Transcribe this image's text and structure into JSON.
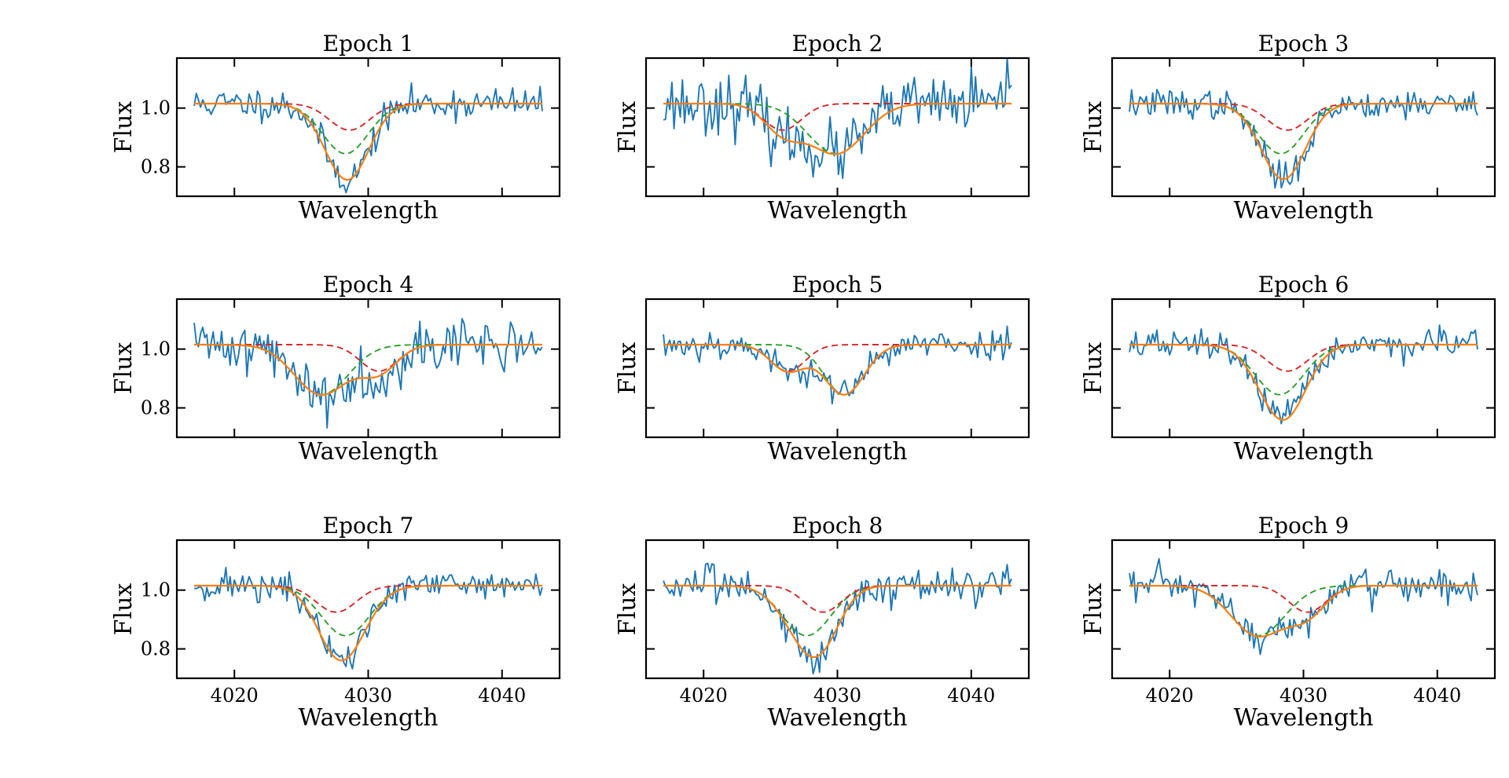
{
  "figure": {
    "colors": {
      "observed": "#1f77b4",
      "model": "#ff7f0e",
      "component_1": "#2ca02c",
      "component_2": "#d62728"
    }
  },
  "chart_data": [
    {
      "type": "line",
      "title": "Epoch 1",
      "xlabel": "Wavelength",
      "ylabel": "Flux",
      "xlim": [
        4015.7,
        4044.3
      ],
      "ylim": [
        0.7,
        1.17
      ],
      "xticks": [
        4020,
        4030,
        4040
      ],
      "yticks": [
        0.8,
        1.0
      ],
      "show_xticklabels": false,
      "show_yticklabels": true,
      "continuum": 1.015,
      "noise": 0.027,
      "seed": 11,
      "components": [
        {
          "name": "",
          "center": 4028.3,
          "depth": 0.17,
          "sigma": 1.7,
          "color": "#2ca02c"
        },
        {
          "name": "",
          "center": 4028.6,
          "depth": 0.09,
          "sigma": 1.5,
          "color": "#d62728"
        }
      ]
    },
    {
      "type": "line",
      "title": "Epoch 2",
      "xlabel": "Wavelength",
      "ylabel": "Flux",
      "xlim": [
        4015.7,
        4044.3
      ],
      "ylim": [
        0.7,
        1.17
      ],
      "xticks": [
        4020,
        4030,
        4040
      ],
      "yticks": [
        0.8,
        1.0
      ],
      "show_xticklabels": false,
      "show_yticklabels": false,
      "continuum": 1.015,
      "noise": 0.05,
      "seed": 23,
      "components": [
        {
          "name": "",
          "center": 4029.9,
          "depth": 0.17,
          "sigma": 2.1,
          "color": "#2ca02c"
        },
        {
          "name": "",
          "center": 4025.9,
          "depth": 0.09,
          "sigma": 1.4,
          "color": "#d62728"
        }
      ]
    },
    {
      "type": "line",
      "title": "Epoch 3",
      "xlabel": "Wavelength",
      "ylabel": "Flux",
      "xlim": [
        4015.7,
        4044.3
      ],
      "ylim": [
        0.7,
        1.17
      ],
      "xticks": [
        4020,
        4030,
        4040
      ],
      "yticks": [
        0.8,
        1.0
      ],
      "show_xticklabels": false,
      "show_yticklabels": false,
      "continuum": 1.015,
      "noise": 0.025,
      "seed": 37,
      "components": [
        {
          "name": "",
          "center": 4028.3,
          "depth": 0.17,
          "sigma": 1.7,
          "color": "#2ca02c"
        },
        {
          "name": "",
          "center": 4028.8,
          "depth": 0.09,
          "sigma": 1.5,
          "color": "#d62728"
        }
      ]
    },
    {
      "type": "line",
      "title": "Epoch 4",
      "xlabel": "Wavelength",
      "ylabel": "Flux",
      "xlim": [
        4015.7,
        4044.3
      ],
      "ylim": [
        0.7,
        1.17
      ],
      "xticks": [
        4020,
        4030,
        4040
      ],
      "yticks": [
        0.8,
        1.0
      ],
      "show_xticklabels": false,
      "show_yticklabels": true,
      "continuum": 1.015,
      "noise": 0.045,
      "seed": 41,
      "components": [
        {
          "name": "",
          "center": 4026.5,
          "depth": 0.17,
          "sigma": 2.0,
          "color": "#2ca02c"
        },
        {
          "name": "",
          "center": 4030.8,
          "depth": 0.09,
          "sigma": 1.4,
          "color": "#d62728"
        }
      ]
    },
    {
      "type": "line",
      "title": "Epoch 5",
      "xlabel": "Wavelength",
      "ylabel": "Flux",
      "xlim": [
        4015.7,
        4044.3
      ],
      "ylim": [
        0.7,
        1.17
      ],
      "xticks": [
        4020,
        4030,
        4040
      ],
      "yticks": [
        0.8,
        1.0
      ],
      "show_xticklabels": false,
      "show_yticklabels": false,
      "continuum": 1.015,
      "noise": 0.025,
      "seed": 53,
      "components": [
        {
          "name": "",
          "center": 4030.5,
          "depth": 0.17,
          "sigma": 1.5,
          "color": "#2ca02c"
        },
        {
          "name": "",
          "center": 4026.3,
          "depth": 0.09,
          "sigma": 1.3,
          "color": "#d62728"
        }
      ]
    },
    {
      "type": "line",
      "title": "Epoch 6",
      "xlabel": "Wavelength",
      "ylabel": "Flux",
      "xlim": [
        4015.7,
        4044.3
      ],
      "ylim": [
        0.7,
        1.17
      ],
      "xticks": [
        4020,
        4030,
        4040
      ],
      "yticks": [
        0.8,
        1.0
      ],
      "show_xticklabels": false,
      "show_yticklabels": false,
      "continuum": 1.015,
      "noise": 0.025,
      "seed": 67,
      "components": [
        {
          "name": "",
          "center": 4028.2,
          "depth": 0.17,
          "sigma": 1.8,
          "color": "#2ca02c"
        },
        {
          "name": "",
          "center": 4028.8,
          "depth": 0.09,
          "sigma": 1.5,
          "color": "#d62728"
        }
      ]
    },
    {
      "type": "line",
      "title": "Epoch 7",
      "xlabel": "Wavelength",
      "ylabel": "Flux",
      "xlim": [
        4015.7,
        4044.3
      ],
      "ylim": [
        0.7,
        1.17
      ],
      "xticks": [
        4020,
        4030,
        4040
      ],
      "yticks": [
        0.8,
        1.0
      ],
      "show_xticklabels": true,
      "show_yticklabels": true,
      "continuum": 1.015,
      "noise": 0.027,
      "seed": 71,
      "components": [
        {
          "name": "",
          "center": 4028.3,
          "depth": 0.17,
          "sigma": 1.8,
          "color": "#2ca02c"
        },
        {
          "name": "",
          "center": 4027.6,
          "depth": 0.09,
          "sigma": 1.5,
          "color": "#d62728"
        }
      ]
    },
    {
      "type": "line",
      "title": "Epoch 8",
      "xlabel": "Wavelength",
      "ylabel": "Flux",
      "xlim": [
        4015.7,
        4044.3
      ],
      "ylim": [
        0.7,
        1.17
      ],
      "xticks": [
        4020,
        4030,
        4040
      ],
      "yticks": [
        0.8,
        1.0
      ],
      "show_xticklabels": true,
      "show_yticklabels": false,
      "continuum": 1.015,
      "noise": 0.03,
      "seed": 83,
      "components": [
        {
          "name": "",
          "center": 4027.7,
          "depth": 0.17,
          "sigma": 1.8,
          "color": "#2ca02c"
        },
        {
          "name": "",
          "center": 4028.9,
          "depth": 0.09,
          "sigma": 1.4,
          "color": "#d62728"
        }
      ]
    },
    {
      "type": "line",
      "title": "Epoch 9",
      "xlabel": "Wavelength",
      "ylabel": "Flux",
      "xlim": [
        4015.7,
        4044.3
      ],
      "ylim": [
        0.7,
        1.17
      ],
      "xticks": [
        4020,
        4030,
        4040
      ],
      "yticks": [
        0.8,
        1.0
      ],
      "show_xticklabels": true,
      "show_yticklabels": false,
      "continuum": 1.015,
      "noise": 0.03,
      "seed": 97,
      "components": [
        {
          "name": "",
          "center": 4026.6,
          "depth": 0.17,
          "sigma": 2.0,
          "color": "#2ca02c"
        },
        {
          "name": "",
          "center": 4030.3,
          "depth": 0.09,
          "sigma": 1.4,
          "color": "#d62728"
        }
      ]
    }
  ]
}
